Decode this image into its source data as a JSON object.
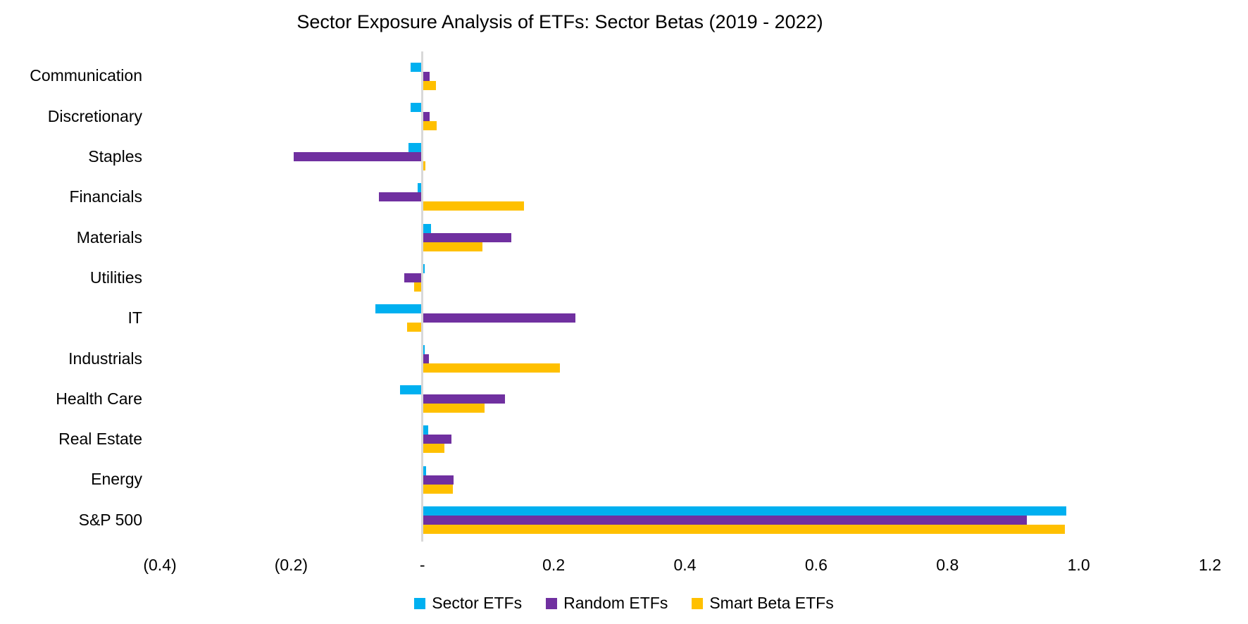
{
  "title": "Sector Exposure Analysis of ETFs: Sector Betas (2019 - 2022)",
  "chart_data": {
    "type": "bar",
    "orientation": "horizontal",
    "title": "Sector Exposure Analysis of ETFs: Sector Betas (2019 - 2022)",
    "categories": [
      "Communication",
      "Discretionary",
      "Staples",
      "Financials",
      "Materials",
      "Utilities",
      "IT",
      "Industrials",
      "Health Care",
      "Real Estate",
      "Energy",
      "S&P 500"
    ],
    "series": [
      {
        "name": "Sector ETFs",
        "color": "#00B0F0",
        "values": [
          -0.018,
          -0.018,
          -0.021,
          -0.007,
          0.013,
          0.004,
          -0.072,
          0.004,
          -0.034,
          0.009,
          0.006,
          0.981
        ]
      },
      {
        "name": "Random ETFs",
        "color": "#7030A0",
        "values": [
          0.011,
          0.011,
          -0.196,
          -0.066,
          0.136,
          -0.028,
          0.233,
          0.01,
          0.126,
          0.044,
          0.048,
          0.921
        ]
      },
      {
        "name": "Smart Beta ETFs",
        "color": "#FFC000",
        "values": [
          0.021,
          0.022,
          0.005,
          0.155,
          0.092,
          -0.013,
          -0.023,
          0.209,
          0.095,
          0.034,
          0.046,
          0.979
        ]
      }
    ],
    "xlabel": "",
    "ylabel": "",
    "xlim": [
      -0.4,
      1.2
    ],
    "x_ticks": [
      {
        "value": -0.4,
        "label": "(0.4)"
      },
      {
        "value": -0.2,
        "label": "(0.2)"
      },
      {
        "value": 0.0,
        "label": "-"
      },
      {
        "value": 0.2,
        "label": "0.2"
      },
      {
        "value": 0.4,
        "label": "0.4"
      },
      {
        "value": 0.6,
        "label": "0.6"
      },
      {
        "value": 0.8,
        "label": "0.8"
      },
      {
        "value": 1.0,
        "label": "1.0"
      },
      {
        "value": 1.2,
        "label": "1.2"
      }
    ],
    "grid": false,
    "zero_line_color": "#D9D9D9",
    "legend_position": "bottom",
    "legend": [
      "Sector ETFs",
      "Random ETFs",
      "Smart Beta ETFs"
    ]
  }
}
